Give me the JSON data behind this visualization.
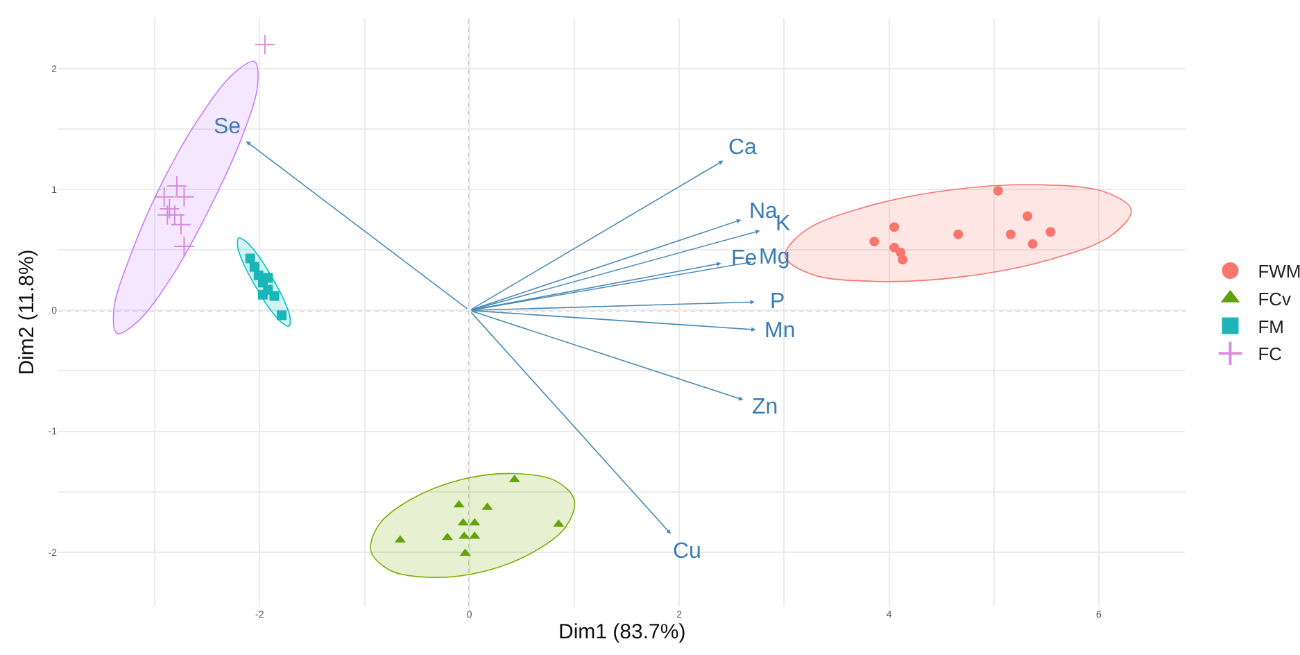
{
  "chart_data": {
    "type": "scatter",
    "xlabel": "Dim1 (83.7%)",
    "ylabel": "Dim2 (11.8%)",
    "xlim": [
      -3.92,
      6.83
    ],
    "ylim": [
      -2.45,
      2.42
    ],
    "xticks": [
      {
        "value": -3,
        "label": null
      },
      -2,
      {
        "value": -1,
        "label": null
      },
      0,
      {
        "value": 1,
        "label": null
      },
      2,
      {
        "value": 3,
        "label": null
      },
      4,
      {
        "value": 5,
        "label": null
      },
      6
    ],
    "yticks": [
      -2,
      {
        "value": -1.5,
        "label": null
      },
      -1,
      {
        "value": -0.5,
        "label": null
      },
      0,
      {
        "value": 0.5,
        "label": null
      },
      1,
      {
        "value": 1.5,
        "label": null
      },
      2
    ],
    "grid": true,
    "legend": "right",
    "ref_lines": [
      {
        "axis": "x",
        "value": 0,
        "color": "#333333",
        "line_style": "dotted"
      },
      {
        "axis": "y",
        "value": 0,
        "color": "#999999",
        "line_style": "dotted"
      }
    ],
    "annotations": [
      {
        "text": "Ca",
        "x": 2.42,
        "y": 1.24
      },
      {
        "text": "Na",
        "x": 2.59,
        "y": 0.75
      },
      {
        "text": "K",
        "x": 2.77,
        "y": 0.66
      },
      {
        "text": "Mg",
        "x": 2.69,
        "y": 0.4
      },
      {
        "text": "Fe",
        "x": 2.4,
        "y": 0.39
      },
      {
        "text": "P",
        "x": 2.72,
        "y": 0.07
      },
      {
        "text": "Mn",
        "x": 2.73,
        "y": -0.16
      },
      {
        "text": "Zn",
        "x": 2.61,
        "y": -0.74
      },
      {
        "text": "Cu",
        "x": 1.92,
        "y": -1.85
      },
      {
        "text": "Se",
        "x": -2.13,
        "y": 1.4
      }
    ],
    "series": [
      {
        "name": "FWM",
        "marker": "circle",
        "color": "#f8766d",
        "x": [
          5.04,
          4.05,
          5.32,
          3.86,
          4.66,
          5.16,
          5.54,
          5.37,
          4.05,
          4.11,
          4.13
        ],
        "values": [
          0.99,
          0.69,
          0.78,
          0.57,
          0.63,
          0.63,
          0.65,
          0.55,
          0.52,
          0.48,
          0.42
        ]
      },
      {
        "name": "FCv",
        "marker": "triangle",
        "color": "#5ea10c",
        "x": [
          0.43,
          -0.1,
          0.17,
          -0.06,
          0.05,
          -0.66,
          -0.21,
          -0.05,
          0.05,
          -0.04,
          0.85
        ],
        "values": [
          -1.4,
          -1.61,
          -1.63,
          -1.76,
          -1.76,
          -1.9,
          -1.88,
          -1.87,
          -1.87,
          -2.01,
          -1.77
        ]
      },
      {
        "name": "FM",
        "marker": "square",
        "color": "#1fb5b8",
        "x": [
          -2.09,
          -2.05,
          -2.01,
          -1.97,
          -1.92,
          -1.92,
          -1.97,
          -1.86,
          -1.79
        ],
        "values": [
          0.43,
          0.36,
          0.29,
          0.23,
          0.27,
          0.17,
          0.13,
          0.12,
          -0.04
        ]
      },
      {
        "name": "FC",
        "marker": "cross",
        "color": "#d98fdb",
        "x": [
          -1.95,
          -2.79,
          -2.91,
          -2.72,
          -2.86,
          -2.88,
          -2.81,
          -2.75,
          -2.72
        ],
        "values": [
          2.2,
          1.03,
          0.94,
          0.94,
          0.84,
          0.79,
          0.79,
          0.71,
          0.53
        ]
      },
      {
        "type": "area",
        "color": "#f8766d",
        "x": [
          6.31,
          6.06,
          5.44,
          4.61,
          3.79,
          3.2,
          3.01,
          3.26,
          3.88,
          4.71,
          5.53,
          6.12,
          6.31
        ],
        "values": [
          0.83,
          0.98,
          1.04,
          1.0,
          0.86,
          0.66,
          0.45,
          0.3,
          0.24,
          0.28,
          0.42,
          0.62,
          0.83
        ]
      },
      {
        "type": "area",
        "color": "#7cae00",
        "x": [
          1.0,
          0.82,
          0.42,
          -0.08,
          -0.55,
          -0.86,
          -0.94,
          -0.76,
          -0.36,
          0.14,
          0.61,
          0.92,
          1.0
        ],
        "values": [
          -1.57,
          -1.41,
          -1.35,
          -1.4,
          -1.56,
          -1.77,
          -1.99,
          -2.15,
          -2.21,
          -2.16,
          -2.0,
          -1.79,
          -1.57
        ]
      },
      {
        "type": "area",
        "color": "#00bfc4",
        "x": [
          -1.72,
          -1.71,
          -1.77,
          -1.88,
          -2.01,
          -2.13,
          -2.2,
          -2.21,
          -2.15,
          -2.04,
          -1.91,
          -1.79,
          -1.72
        ],
        "values": [
          -0.13,
          -0.06,
          0.09,
          0.27,
          0.45,
          0.57,
          0.6,
          0.53,
          0.38,
          0.2,
          0.02,
          -0.1,
          -0.13
        ]
      },
      {
        "type": "area",
        "color": "#c77cff",
        "x": [
          -2.05,
          -2.02,
          -2.18,
          -2.48,
          -2.83,
          -3.16,
          -3.36,
          -3.39,
          -3.23,
          -2.94,
          -2.58,
          -2.25,
          -2.05
        ],
        "values": [
          2.06,
          1.86,
          1.41,
          0.84,
          0.29,
          -0.09,
          -0.19,
          0.01,
          0.46,
          1.04,
          1.59,
          1.96,
          2.06
        ]
      }
    ]
  }
}
